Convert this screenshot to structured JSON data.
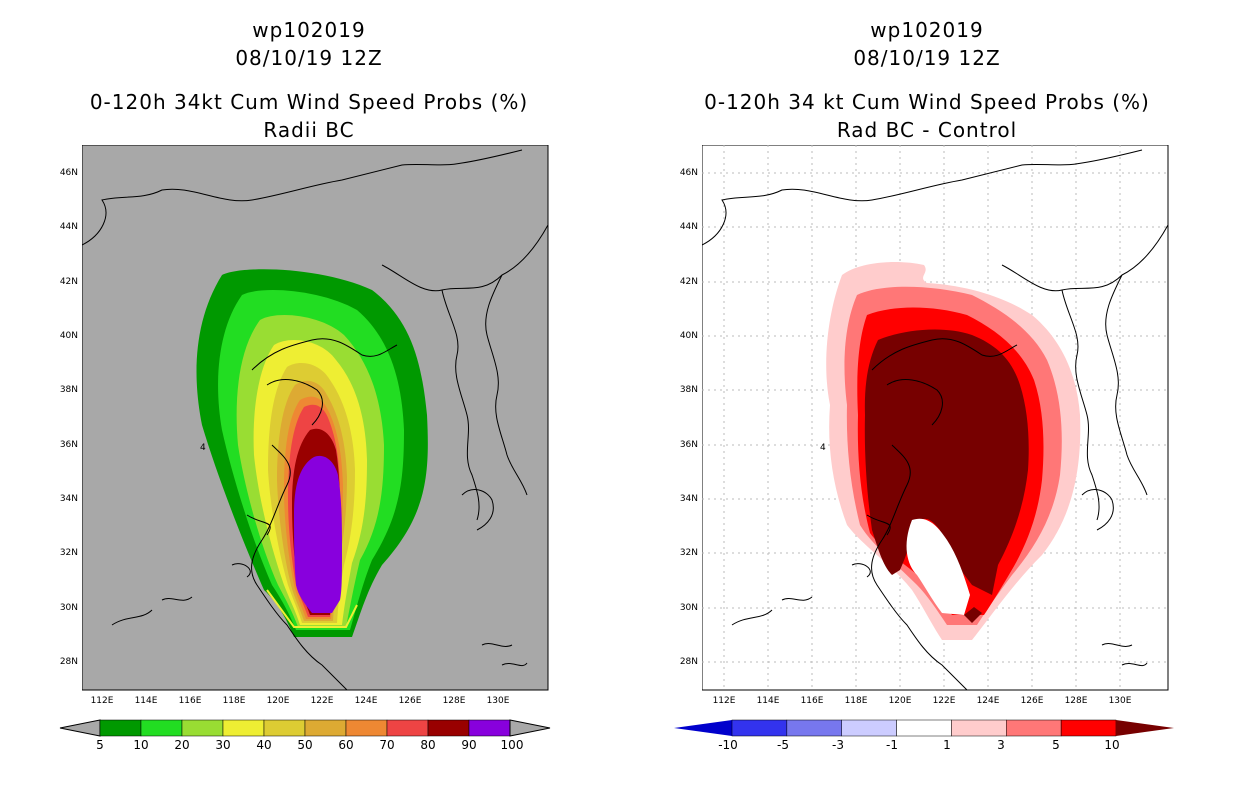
{
  "left_panel": {
    "title": "wp102019",
    "datetime": "08/10/19 12Z",
    "product": "0-120h 34kt Cum Wind Speed Probs (%)",
    "subtitle": "Radii BC",
    "lat_labels": [
      "46N",
      "44N",
      "42N",
      "40N",
      "38N",
      "36N",
      "34N",
      "32N",
      "30N",
      "28N"
    ],
    "lon_labels": [
      "112E",
      "114E",
      "116E",
      "118E",
      "120E",
      "122E",
      "124E",
      "126E",
      "128E",
      "130E"
    ],
    "stray_mark": "4",
    "colorbar": {
      "labels": [
        "5",
        "10",
        "20",
        "30",
        "40",
        "50",
        "60",
        "70",
        "80",
        "90",
        "100"
      ],
      "colors": [
        "#009900",
        "#22dd22",
        "#99dd33",
        "#eeee33",
        "#ddcc33",
        "#ddaa33",
        "#ee8833",
        "#ee4444",
        "#990000",
        "#8800dd"
      ]
    }
  },
  "right_panel": {
    "title": "wp102019",
    "datetime": "08/10/19 12Z",
    "product": "0-120h 34 kt Cum Wind Speed Probs (%)",
    "subtitle": "Rad BC - Control",
    "lat_labels": [
      "46N",
      "44N",
      "42N",
      "40N",
      "38N",
      "36N",
      "34N",
      "32N",
      "30N",
      "28N"
    ],
    "lon_labels": [
      "112E",
      "114E",
      "116E",
      "118E",
      "120E",
      "122E",
      "124E",
      "126E",
      "128E",
      "130E"
    ],
    "stray_mark": "4",
    "colorbar": {
      "labels": [
        "-10",
        "-5",
        "-3",
        "-1",
        "1",
        "3",
        "5",
        "10"
      ],
      "colors": [
        "#0000cc",
        "#3333ee",
        "#7777ee",
        "#ccccff",
        "#ffffff",
        "#ffcccc",
        "#ff7777",
        "#ff0000",
        "#770000"
      ]
    }
  }
}
